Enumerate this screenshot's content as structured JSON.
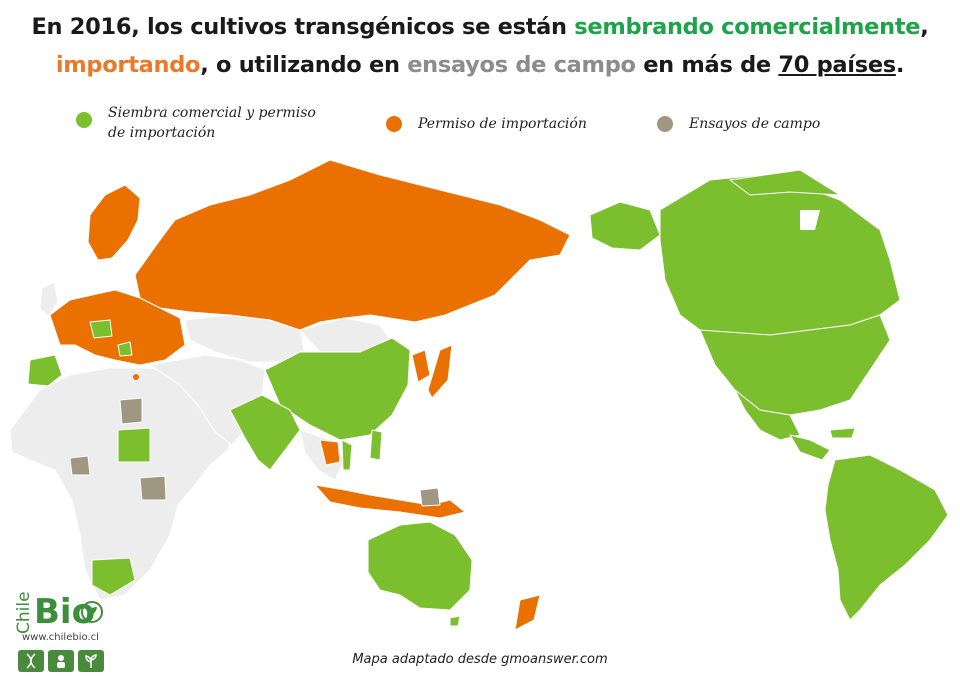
{
  "title": {
    "part1": "En 2016, los cultivos transgénicos se están ",
    "green": "sembrando comercialmente",
    "part2": ",",
    "orange": "importando",
    "part3": ", o utilizando en ",
    "gray": "ensayos de campo",
    "part4": " en más de ",
    "underlined": "70 países",
    "part5": "."
  },
  "legend": [
    {
      "label_line1": "Siembra comercial y permiso",
      "label_line2": "de importación",
      "color": "#7cbf2e"
    },
    {
      "label": "Permiso de importación",
      "color": "#ea7000"
    },
    {
      "label": "Ensayos de campo",
      "color": "#a09783"
    }
  ],
  "colors": {
    "green": "#7cbf2e",
    "orange": "#ea7000",
    "gray": "#a09783",
    "base": "#ededed",
    "border": "#ffffff"
  },
  "credit": "Mapa adaptado  desde  gmoanswer.com",
  "logo": {
    "chile": "Chile",
    "bio": "Bio",
    "url": "www.chilebio.cl"
  }
}
